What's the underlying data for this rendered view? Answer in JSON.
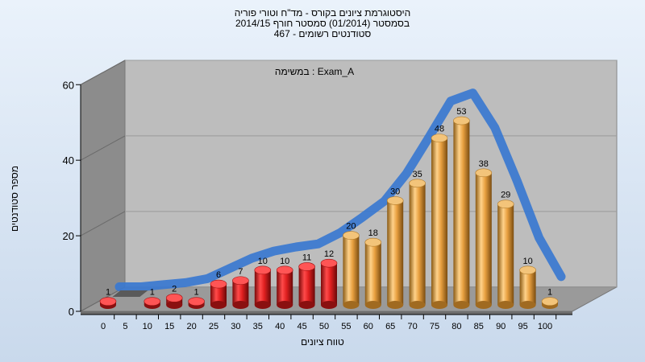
{
  "chart_data": {
    "type": "bar",
    "title_lines": [
      "היסטוגרמת ציונים בקורס - מד\"ח וטורי פוריה",
      "בסמסטר  (01/2014)  סמסטר חורף 2014/15",
      "467 - סטודנטים רשומים"
    ],
    "subtitle": "במשימה : Exam_A",
    "xlabel": "טווח ציונים",
    "ylabel": "מספר סטודנטים",
    "ylim": [
      0,
      60
    ],
    "yticks": [
      0,
      20,
      40,
      60
    ],
    "x_tick_labels": [
      "0",
      "5",
      "10",
      "15",
      "20",
      "25",
      "30",
      "35",
      "40",
      "45",
      "50",
      "55",
      "60",
      "65",
      "70",
      "75",
      "80",
      "85",
      "90",
      "95",
      "100"
    ],
    "values": [
      1,
      null,
      1,
      2,
      1,
      6,
      7,
      10,
      10,
      11,
      12,
      20,
      18,
      30,
      35,
      48,
      53,
      38,
      29,
      10,
      1
    ],
    "bar_colors": {
      "fail": "#d42020",
      "pass": "#e8a040",
      "curve": "#3a78d0"
    },
    "pass_from_index": 11
  }
}
